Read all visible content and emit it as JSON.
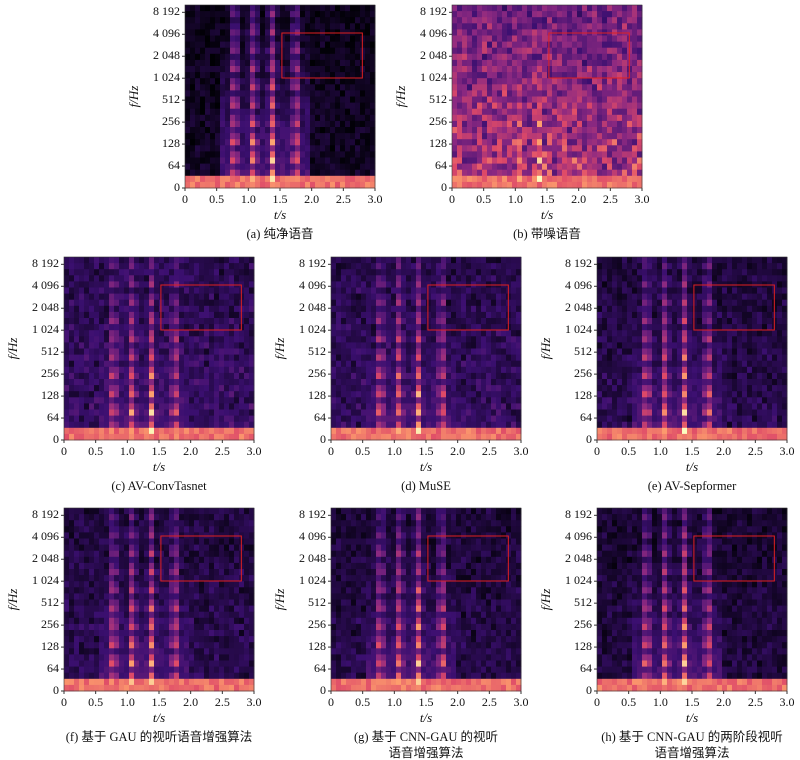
{
  "axes": {
    "y_label": "f/Hz",
    "x_label": "t/s",
    "y_ticks": [
      "0",
      "64",
      "128",
      "256",
      "512",
      "1 024",
      "2 048",
      "4 096",
      "8 192"
    ],
    "x_ticks": [
      "0",
      "0.5",
      "1.0",
      "1.5",
      "2.0",
      "2.5",
      "3.0"
    ]
  },
  "panels": [
    {
      "caption": [
        "(a) 纯净语音"
      ]
    },
    {
      "caption": [
        "(b) 带噪语音"
      ]
    },
    {
      "caption": [
        "(c) AV-ConvTasnet"
      ]
    },
    {
      "caption": [
        "(d) MuSE"
      ]
    },
    {
      "caption": [
        "(e) AV-Sepformer"
      ]
    },
    {
      "caption": [
        "(f) 基于 GAU 的视听语音增强算法"
      ]
    },
    {
      "caption": [
        "(g) 基于 CNN-GAU 的视听",
        "语音增强算法"
      ]
    },
    {
      "caption": [
        "(h) 基于 CNN-GAU 的两阶段视听",
        "语音增强算法"
      ]
    }
  ]
}
